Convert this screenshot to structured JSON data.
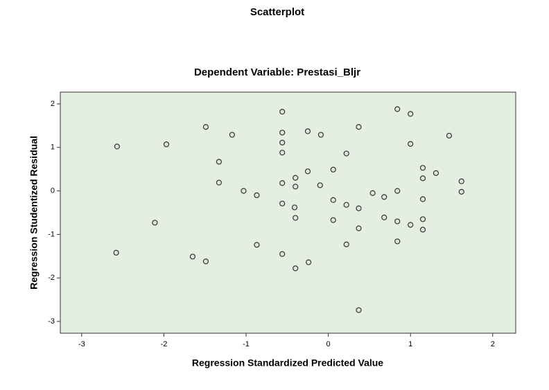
{
  "chart_data": {
    "type": "scatter",
    "title": "Scatterplot",
    "subtitle": "Dependent Variable: Prestasi_Bljr",
    "x_label": "Regression Standardized Predicted Value",
    "y_label": "Regression Studentized Residual",
    "x": [
      -2.57,
      -2.58,
      -2.11,
      -1.97,
      -1.65,
      -1.49,
      -1.49,
      -1.33,
      -1.33,
      -1.17,
      -1.03,
      -0.87,
      -0.87,
      -0.56,
      -0.56,
      -0.56,
      -0.56,
      -0.56,
      -0.56,
      -0.56,
      -0.4,
      -0.4,
      -0.41,
      -0.4,
      -0.4,
      -0.25,
      -0.25,
      -0.24,
      -0.1,
      -0.09,
      0.06,
      0.06,
      0.06,
      0.22,
      0.22,
      0.22,
      0.37,
      0.37,
      0.37,
      0.37,
      0.54,
      0.68,
      0.68,
      0.84,
      0.84,
      0.84,
      0.84,
      1.0,
      1.0,
      1.0,
      1.15,
      1.15,
      1.15,
      1.15,
      1.15,
      1.31,
      1.47,
      1.62,
      1.62
    ],
    "y": [
      1.02,
      -1.42,
      -0.73,
      1.07,
      -1.51,
      1.47,
      -1.62,
      0.67,
      0.19,
      1.29,
      0.0,
      -0.1,
      -1.24,
      1.82,
      1.34,
      1.11,
      0.88,
      0.18,
      -0.29,
      -1.45,
      0.3,
      0.1,
      -0.38,
      -0.62,
      -1.78,
      1.37,
      0.45,
      -1.64,
      0.13,
      1.29,
      0.49,
      -0.21,
      -0.67,
      0.86,
      -0.32,
      -1.23,
      1.47,
      -0.4,
      -0.86,
      -2.74,
      -0.05,
      -0.14,
      -0.61,
      1.88,
      0.0,
      -0.7,
      -1.16,
      1.77,
      1.08,
      -0.78,
      0.53,
      0.29,
      -0.19,
      -0.65,
      -0.89,
      0.41,
      1.27,
      0.22,
      -0.02
    ],
    "xlim": [
      -3.26,
      2.28
    ],
    "ylim": [
      -3.27,
      2.27
    ],
    "xticks": [
      -3,
      -2,
      -1,
      0,
      1,
      2
    ],
    "yticks": [
      -3,
      -2,
      -1,
      0,
      1,
      2
    ],
    "color": "#333333",
    "background": "#e4efe2"
  }
}
